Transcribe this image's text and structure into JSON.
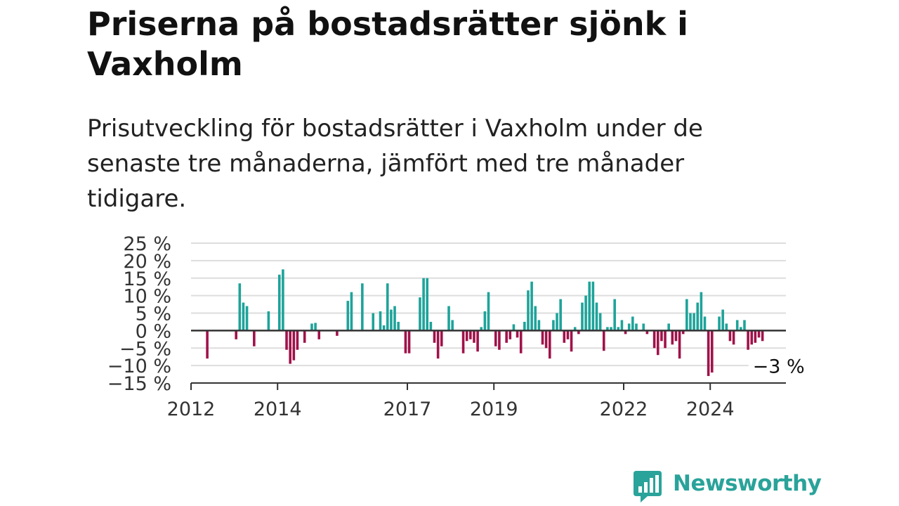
{
  "title": "Priserna på bostadsrätter sjönk i Vaxholm",
  "subtitle": "Prisutveckling för bostadsrätter i Vaxholm under de senaste tre månaderna, jämfört med tre månader tidigare.",
  "brand": {
    "name": "Newsworthy",
    "color": "#2aa39a"
  },
  "colors": {
    "positive": "#1ea39a",
    "negative": "#a0124a",
    "grid": "#dddddd",
    "axis": "#333333"
  },
  "chart_data": {
    "type": "bar",
    "title": "Priserna på bostadsrätter sjönk i Vaxholm",
    "xlabel": "",
    "ylabel": "",
    "ylim": [
      -15,
      25
    ],
    "y_ticks": [
      25,
      20,
      15,
      10,
      5,
      0,
      -5,
      -10,
      -15
    ],
    "y_tick_labels": [
      "25 %",
      "20 %",
      "15 %",
      "10 %",
      "5 %",
      "0 %",
      "−5 %",
      "−10 %",
      "−15 %"
    ],
    "x_ticks": [
      "2012",
      "2014",
      "2017",
      "2019",
      "2022",
      "2024"
    ],
    "x_start": "2012-01",
    "x_end": "2025-09",
    "grid": true,
    "annotation": {
      "label": "−3 %",
      "x": "2025-03",
      "value": -3
    },
    "x": [
      "2012-01",
      "2012-02",
      "2012-03",
      "2012-04",
      "2012-05",
      "2012-06",
      "2012-07",
      "2012-08",
      "2012-09",
      "2012-10",
      "2012-11",
      "2012-12",
      "2013-01",
      "2013-02",
      "2013-03",
      "2013-04",
      "2013-05",
      "2013-06",
      "2013-07",
      "2013-08",
      "2013-09",
      "2013-10",
      "2013-11",
      "2013-12",
      "2014-01",
      "2014-02",
      "2014-03",
      "2014-04",
      "2014-05",
      "2014-06",
      "2014-07",
      "2014-08",
      "2014-09",
      "2014-10",
      "2014-11",
      "2014-12",
      "2015-01",
      "2015-02",
      "2015-03",
      "2015-04",
      "2015-05",
      "2015-06",
      "2015-07",
      "2015-08",
      "2015-09",
      "2015-10",
      "2015-11",
      "2015-12",
      "2016-01",
      "2016-02",
      "2016-03",
      "2016-04",
      "2016-05",
      "2016-06",
      "2016-07",
      "2016-08",
      "2016-09",
      "2016-10",
      "2016-11",
      "2016-12",
      "2017-01",
      "2017-02",
      "2017-03",
      "2017-04",
      "2017-05",
      "2017-06",
      "2017-07",
      "2017-08",
      "2017-09",
      "2017-10",
      "2017-11",
      "2017-12",
      "2018-01",
      "2018-02",
      "2018-03",
      "2018-04",
      "2018-05",
      "2018-06",
      "2018-07",
      "2018-08",
      "2018-09",
      "2018-10",
      "2018-11",
      "2018-12",
      "2019-01",
      "2019-02",
      "2019-03",
      "2019-04",
      "2019-05",
      "2019-06",
      "2019-07",
      "2019-08",
      "2019-09",
      "2019-10",
      "2019-11",
      "2019-12",
      "2020-01",
      "2020-02",
      "2020-03",
      "2020-04",
      "2020-05",
      "2020-06",
      "2020-07",
      "2020-08",
      "2020-09",
      "2020-10",
      "2020-11",
      "2020-12",
      "2021-01",
      "2021-02",
      "2021-03",
      "2021-04",
      "2021-05",
      "2021-06",
      "2021-07",
      "2021-08",
      "2021-09",
      "2021-10",
      "2021-11",
      "2021-12",
      "2022-01",
      "2022-02",
      "2022-03",
      "2022-04",
      "2022-05",
      "2022-06",
      "2022-07",
      "2022-08",
      "2022-09",
      "2022-10",
      "2022-11",
      "2022-12",
      "2023-01",
      "2023-02",
      "2023-03",
      "2023-04",
      "2023-05",
      "2023-06",
      "2023-07",
      "2023-08",
      "2023-09",
      "2023-10",
      "2023-11",
      "2023-12",
      "2024-01",
      "2024-02",
      "2024-03",
      "2024-04",
      "2024-05",
      "2024-06",
      "2024-07",
      "2024-08",
      "2024-09",
      "2024-10",
      "2024-11",
      "2024-12",
      "2025-01",
      "2025-02",
      "2025-03"
    ],
    "values": [
      null,
      null,
      null,
      null,
      -8,
      null,
      null,
      null,
      null,
      null,
      null,
      null,
      -2.5,
      13.5,
      8,
      7,
      null,
      -4.5,
      null,
      null,
      null,
      5.5,
      null,
      null,
      16,
      17.5,
      -5.5,
      -9.5,
      -8.5,
      -5.5,
      null,
      -3.5,
      null,
      2,
      2.2,
      -2.5,
      null,
      null,
      null,
      null,
      -1.5,
      null,
      null,
      8.5,
      11,
      null,
      null,
      13.5,
      null,
      null,
      5,
      null,
      5.5,
      1.5,
      13.5,
      6,
      7,
      2.5,
      null,
      -6.5,
      -6.5,
      null,
      null,
      9.5,
      15,
      15,
      2.5,
      -3.5,
      -8,
      -4.5,
      null,
      7,
      3,
      null,
      null,
      -6.5,
      -3,
      -2.5,
      -3.5,
      -6,
      1,
      5.5,
      11,
      null,
      -4.5,
      -5.5,
      null,
      -3.5,
      -2.5,
      1.8,
      -2,
      -6.5,
      2.5,
      11.5,
      14,
      7,
      3,
      -4,
      -5,
      -8,
      3,
      5,
      9,
      -3.5,
      -2.5,
      -6,
      1,
      -1,
      8,
      10,
      14,
      14,
      8,
      5,
      -5.8,
      1,
      1,
      9,
      1,
      3,
      -1,
      2,
      4,
      2,
      null,
      2,
      -1,
      null,
      -5,
      -7,
      -3,
      -5,
      2,
      -4,
      -3,
      -8,
      -1,
      9,
      5,
      5,
      8,
      11,
      4,
      -13,
      -12,
      null,
      4,
      6,
      2,
      -3,
      -4,
      3,
      1,
      3,
      -5.5,
      -4,
      -3.5,
      -2,
      -3
    ]
  }
}
